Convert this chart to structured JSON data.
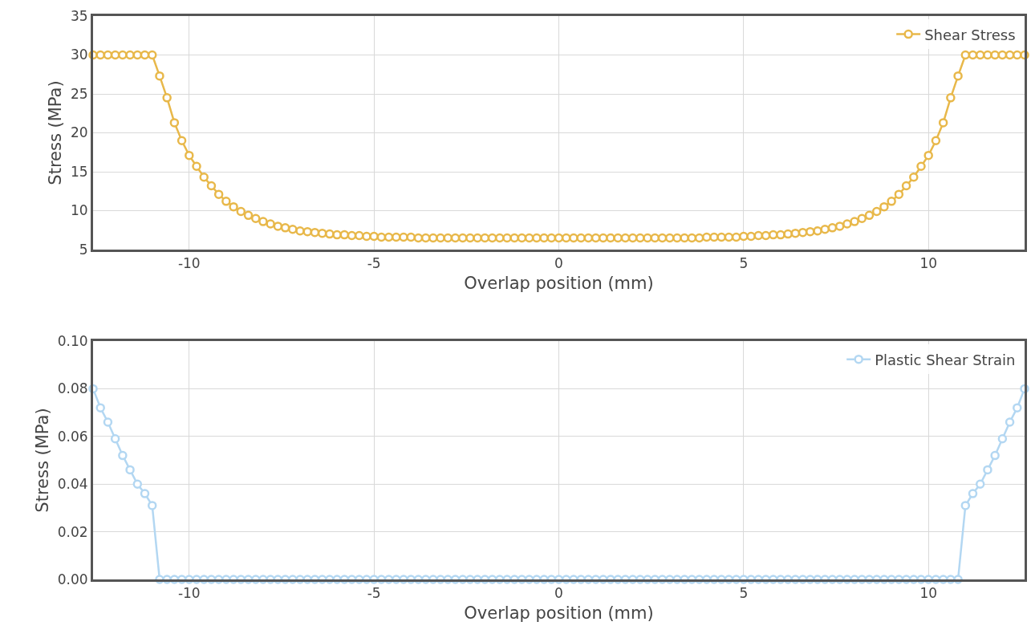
{
  "chart_data": [
    {
      "type": "line",
      "xlabel": "Overlap position (mm)",
      "ylabel": "Stress (MPa)",
      "xlim": [
        -12.6,
        12.6
      ],
      "xticks": [
        -10,
        -5,
        0,
        5,
        10
      ],
      "ylim": [
        5,
        35
      ],
      "yticks": [
        5,
        10,
        15,
        20,
        25,
        30,
        35
      ],
      "grid": true,
      "legend": "top right",
      "marker": "circle",
      "line_style": "solid",
      "x": [
        -12.6,
        -12.4,
        -12.2,
        -12.0,
        -11.8,
        -11.6,
        -11.4,
        -11.2,
        -11.0,
        -10.8,
        -10.6,
        -10.4,
        -10.2,
        -10.0,
        -9.8,
        -9.6,
        -9.4,
        -9.2,
        -9.0,
        -8.8,
        -8.6,
        -8.4,
        -8.2,
        -8.0,
        -7.8,
        -7.6,
        -7.4,
        -7.2,
        -7.0,
        -6.8,
        -6.6,
        -6.4,
        -6.2,
        -6.0,
        -5.8,
        -5.6,
        -5.4,
        -5.2,
        -5.0,
        -4.8,
        -4.6,
        -4.4,
        -4.2,
        -4.0,
        -3.8,
        -3.6,
        -3.4,
        -3.2,
        -3.0,
        -2.8,
        -2.6,
        -2.4,
        -2.2,
        -2.0,
        -1.8,
        -1.6,
        -1.4,
        -1.2,
        -1.0,
        -0.8,
        -0.6,
        -0.4,
        -0.2,
        0,
        0.2,
        0.4,
        0.6,
        0.8,
        1.0,
        1.2,
        1.4,
        1.6,
        1.8,
        2.0,
        2.2,
        2.4,
        2.6,
        2.8,
        3.0,
        3.2,
        3.4,
        3.6,
        3.8,
        4.0,
        4.2,
        4.4,
        4.6,
        4.8,
        5.0,
        5.2,
        5.4,
        5.6,
        5.8,
        6.0,
        6.2,
        6.4,
        6.6,
        6.8,
        7.0,
        7.2,
        7.4,
        7.6,
        7.8,
        8.0,
        8.2,
        8.4,
        8.6,
        8.8,
        9.0,
        9.2,
        9.4,
        9.6,
        9.8,
        10.0,
        10.2,
        10.4,
        10.6,
        10.8,
        11.0,
        11.2,
        11.4,
        11.6,
        11.8,
        12.0,
        12.2,
        12.4,
        12.6
      ],
      "series": [
        {
          "name": "Shear Stress",
          "color": "#e8b84a",
          "values": [
            30,
            30,
            30,
            30,
            30,
            30,
            30,
            30,
            30,
            27.3,
            24.5,
            21.3,
            19.0,
            17.1,
            15.7,
            14.3,
            13.2,
            12.1,
            11.2,
            10.5,
            9.9,
            9.4,
            9.0,
            8.6,
            8.3,
            8.0,
            7.8,
            7.6,
            7.4,
            7.3,
            7.2,
            7.1,
            7.0,
            6.9,
            6.9,
            6.8,
            6.8,
            6.7,
            6.7,
            6.6,
            6.6,
            6.6,
            6.6,
            6.6,
            6.5,
            6.5,
            6.5,
            6.5,
            6.5,
            6.5,
            6.5,
            6.5,
            6.5,
            6.5,
            6.5,
            6.5,
            6.5,
            6.5,
            6.5,
            6.5,
            6.5,
            6.5,
            6.5,
            6.5,
            6.5,
            6.5,
            6.5,
            6.5,
            6.5,
            6.5,
            6.5,
            6.5,
            6.5,
            6.5,
            6.5,
            6.5,
            6.5,
            6.5,
            6.5,
            6.5,
            6.5,
            6.5,
            6.5,
            6.6,
            6.6,
            6.6,
            6.6,
            6.6,
            6.7,
            6.7,
            6.8,
            6.8,
            6.9,
            6.9,
            7.0,
            7.1,
            7.2,
            7.3,
            7.4,
            7.6,
            7.8,
            8.0,
            8.3,
            8.6,
            9.0,
            9.4,
            9.9,
            10.5,
            11.2,
            12.1,
            13.2,
            14.3,
            15.7,
            17.1,
            19.0,
            21.3,
            24.5,
            27.3,
            30,
            30,
            30,
            30,
            30,
            30,
            30,
            30,
            30
          ]
        }
      ]
    },
    {
      "type": "line",
      "xlabel": "Overlap position (mm)",
      "ylabel": "Stress (MPa)",
      "xlim": [
        -12.6,
        12.6
      ],
      "xticks": [
        -10,
        -5,
        0,
        5,
        10
      ],
      "ylim": [
        0,
        0.1
      ],
      "yticks": [
        {
          "value": 0,
          "label": "0.00"
        },
        {
          "value": 0.02,
          "label": "0.02"
        },
        {
          "value": 0.04,
          "label": "0.04"
        },
        {
          "value": 0.06,
          "label": "0.06"
        },
        {
          "value": 0.08,
          "label": "0.08"
        },
        {
          "value": 0.1,
          "label": "0.10"
        }
      ],
      "grid": true,
      "legend": "top right",
      "marker": "circle",
      "line_style": "solid",
      "x": [
        -12.6,
        -12.4,
        -12.2,
        -12.0,
        -11.8,
        -11.6,
        -11.4,
        -11.2,
        -11.0,
        -10.8,
        -10.6,
        -10.4,
        -10.2,
        -10.0,
        -9.8,
        -9.6,
        -9.4,
        -9.2,
        -9.0,
        -8.8,
        -8.6,
        -8.4,
        -8.2,
        -8.0,
        -7.8,
        -7.6,
        -7.4,
        -7.2,
        -7.0,
        -6.8,
        -6.6,
        -6.4,
        -6.2,
        -6.0,
        -5.8,
        -5.6,
        -5.4,
        -5.2,
        -5.0,
        -4.8,
        -4.6,
        -4.4,
        -4.2,
        -4.0,
        -3.8,
        -3.6,
        -3.4,
        -3.2,
        -3.0,
        -2.8,
        -2.6,
        -2.4,
        -2.2,
        -2.0,
        -1.8,
        -1.6,
        -1.4,
        -1.2,
        -1.0,
        -0.8,
        -0.6,
        -0.4,
        -0.2,
        0,
        0.2,
        0.4,
        0.6,
        0.8,
        1.0,
        1.2,
        1.4,
        1.6,
        1.8,
        2.0,
        2.2,
        2.4,
        2.6,
        2.8,
        3.0,
        3.2,
        3.4,
        3.6,
        3.8,
        4.0,
        4.2,
        4.4,
        4.6,
        4.8,
        5.0,
        5.2,
        5.4,
        5.6,
        5.8,
        6.0,
        6.2,
        6.4,
        6.6,
        6.8,
        7.0,
        7.2,
        7.4,
        7.6,
        7.8,
        8.0,
        8.2,
        8.4,
        8.6,
        8.8,
        9.0,
        9.2,
        9.4,
        9.6,
        9.8,
        10.0,
        10.2,
        10.4,
        10.6,
        10.8,
        11.0,
        11.2,
        11.4,
        11.6,
        11.8,
        12.0,
        12.2,
        12.4,
        12.6
      ],
      "series": [
        {
          "name": "Plastic Shear Strain",
          "color": "#b3d7f2",
          "values": [
            0.08,
            0.072,
            0.066,
            0.059,
            0.052,
            0.046,
            0.04,
            0.036,
            0.031,
            0,
            0,
            0,
            0,
            0,
            0,
            0,
            0,
            0,
            0,
            0,
            0,
            0,
            0,
            0,
            0,
            0,
            0,
            0,
            0,
            0,
            0,
            0,
            0,
            0,
            0,
            0,
            0,
            0,
            0,
            0,
            0,
            0,
            0,
            0,
            0,
            0,
            0,
            0,
            0,
            0,
            0,
            0,
            0,
            0,
            0,
            0,
            0,
            0,
            0,
            0,
            0,
            0,
            0,
            0,
            0,
            0,
            0,
            0,
            0,
            0,
            0,
            0,
            0,
            0,
            0,
            0,
            0,
            0,
            0,
            0,
            0,
            0,
            0,
            0,
            0,
            0,
            0,
            0,
            0,
            0,
            0,
            0,
            0,
            0,
            0,
            0,
            0,
            0,
            0,
            0,
            0,
            0,
            0,
            0,
            0,
            0,
            0,
            0,
            0,
            0,
            0,
            0,
            0,
            0,
            0,
            0,
            0,
            0,
            0.031,
            0.036,
            0.04,
            0.046,
            0.052,
            0.059,
            0.066,
            0.072,
            0.08
          ]
        }
      ]
    }
  ]
}
